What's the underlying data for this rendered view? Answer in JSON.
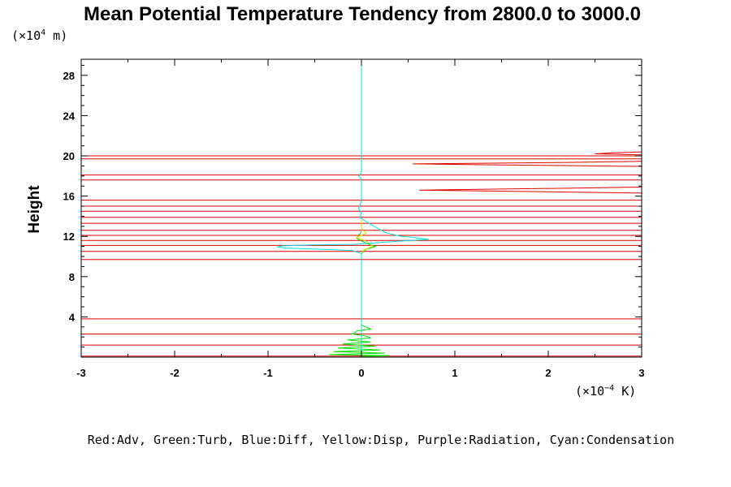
{
  "chart_data": {
    "type": "line",
    "title": "Mean Potential Temperature Tendency from 2800.0 to 3000.0",
    "ylabel": "Height",
    "y_unit": {
      "prefix": "(×10",
      "exp": "4",
      "suffix": " m)"
    },
    "x_unit": {
      "prefix": "(×10",
      "exp": "−4",
      "suffix": " K)"
    },
    "xlim": [
      -3,
      3
    ],
    "ylim": [
      0,
      29.6
    ],
    "x_ticks": [
      -3,
      -2,
      -1,
      0,
      1,
      2,
      3
    ],
    "x_tick_labels": [
      "-3",
      "-2",
      "-1",
      "0",
      "1",
      "2",
      "3"
    ],
    "y_ticks": [
      4,
      8,
      12,
      16,
      20,
      24,
      28
    ],
    "y_tick_labels": [
      "4",
      "8",
      "12",
      "16",
      "20",
      "24",
      "28"
    ],
    "legend_text": "Red:Adv, Green:Turb, Blue:Diff, Yellow:Disp, Purple:Radiation, Cyan:Condensation",
    "series": [
      {
        "color": "#e00000",
        "segments": [
          [
            [
              -3,
              20.0
            ],
            [
              3,
              20.0
            ]
          ],
          [
            [
              -3,
              19.7
            ],
            [
              3,
              19.7
            ]
          ],
          [
            [
              -3,
              18.1
            ],
            [
              3,
              18.1
            ]
          ],
          [
            [
              -3,
              17.6
            ],
            [
              3,
              17.6
            ]
          ],
          [
            [
              -3,
              15.6
            ],
            [
              3,
              15.6
            ]
          ],
          [
            [
              -3,
              15.0
            ],
            [
              3,
              15.0
            ]
          ],
          [
            [
              -3,
              14.5
            ],
            [
              3,
              14.5
            ]
          ],
          [
            [
              -3,
              13.9
            ],
            [
              3,
              13.9
            ]
          ],
          [
            [
              -3,
              13.3
            ],
            [
              3,
              13.3
            ]
          ],
          [
            [
              -3,
              12.6
            ],
            [
              3,
              12.6
            ]
          ],
          [
            [
              -3,
              12.1
            ],
            [
              3,
              12.1
            ]
          ],
          [
            [
              -3,
              11.6
            ],
            [
              3,
              11.6
            ]
          ],
          [
            [
              -3,
              11.1
            ],
            [
              3,
              11.1
            ]
          ],
          [
            [
              -3,
              10.5
            ],
            [
              3,
              10.5
            ]
          ],
          [
            [
              -3,
              9.7
            ],
            [
              3,
              9.7
            ]
          ],
          [
            [
              -3,
              3.8
            ],
            [
              3,
              3.8
            ]
          ],
          [
            [
              -3,
              2.3
            ],
            [
              3,
              2.3
            ]
          ],
          [
            [
              -3,
              1.2
            ],
            [
              3,
              1.2
            ]
          ],
          [
            [
              -3,
              0.1
            ],
            [
              3,
              0.1
            ]
          ],
          [
            [
              3,
              20.4
            ],
            [
              2.7,
              20.3
            ],
            [
              2.5,
              20.2
            ],
            [
              2.8,
              20.15
            ],
            [
              3,
              20.1
            ]
          ],
          [
            [
              3,
              19.45
            ],
            [
              2.2,
              19.35
            ],
            [
              0.55,
              19.2
            ],
            [
              1.5,
              19.1
            ],
            [
              3,
              18.95
            ]
          ],
          [
            [
              3,
              16.9
            ],
            [
              2.3,
              16.8
            ],
            [
              0.62,
              16.6
            ],
            [
              1.8,
              16.45
            ],
            [
              3,
              16.3
            ]
          ]
        ]
      },
      {
        "color": "#00e000",
        "segments": [
          [
            [
              0,
              4.0
            ],
            [
              0,
              3.2
            ],
            [
              0.05,
              3.0
            ],
            [
              0.1,
              2.8
            ],
            [
              -0.05,
              2.6
            ],
            [
              -0.1,
              2.3
            ],
            [
              0.05,
              2.1
            ],
            [
              0.1,
              1.9
            ],
            [
              -0.15,
              1.7
            ],
            [
              0.1,
              1.5
            ],
            [
              -0.2,
              1.3
            ],
            [
              0.15,
              1.1
            ],
            [
              -0.25,
              0.9
            ],
            [
              0.2,
              0.7
            ],
            [
              -0.3,
              0.55
            ],
            [
              0.25,
              0.4
            ],
            [
              -0.35,
              0.25
            ],
            [
              0.3,
              0.15
            ],
            [
              0,
              0.05
            ]
          ],
          [
            [
              0,
              12.5
            ],
            [
              -0.05,
              11.8
            ],
            [
              0.05,
              11.3
            ],
            [
              0.15,
              11.0
            ],
            [
              0.05,
              10.7
            ],
            [
              0,
              10.3
            ]
          ]
        ]
      },
      {
        "color": "#e0e000",
        "segments": [
          [
            [
              0,
              13.8
            ],
            [
              0,
              12.8
            ],
            [
              0.05,
              12.3
            ],
            [
              -0.05,
              11.9
            ],
            [
              0.06,
              11.5
            ],
            [
              0.12,
              11.0
            ],
            [
              0.02,
              10.6
            ],
            [
              0,
              10.2
            ]
          ]
        ]
      },
      {
        "color": "#00e0e0",
        "segments": [
          [
            [
              0,
              29.6
            ],
            [
              0,
              18.3
            ],
            [
              -0.03,
              18.0
            ],
            [
              0,
              17.7
            ],
            [
              0,
              15.5
            ],
            [
              -0.03,
              14.8
            ],
            [
              0,
              14.3
            ],
            [
              -0.02,
              13.9
            ],
            [
              0.1,
              13.2
            ],
            [
              0.25,
              12.4
            ],
            [
              0.4,
              12.05
            ],
            [
              0.6,
              11.85
            ],
            [
              0.72,
              11.7
            ],
            [
              0.45,
              11.55
            ],
            [
              0.15,
              11.35
            ],
            [
              -0.1,
              11.2
            ],
            [
              -0.55,
              11.15
            ],
            [
              -0.85,
              11.05
            ],
            [
              -0.9,
              10.95
            ],
            [
              -0.82,
              10.85
            ],
            [
              -0.4,
              10.7
            ],
            [
              -0.1,
              10.6
            ],
            [
              0,
              10.3
            ],
            [
              0,
              0
            ]
          ]
        ]
      }
    ]
  }
}
